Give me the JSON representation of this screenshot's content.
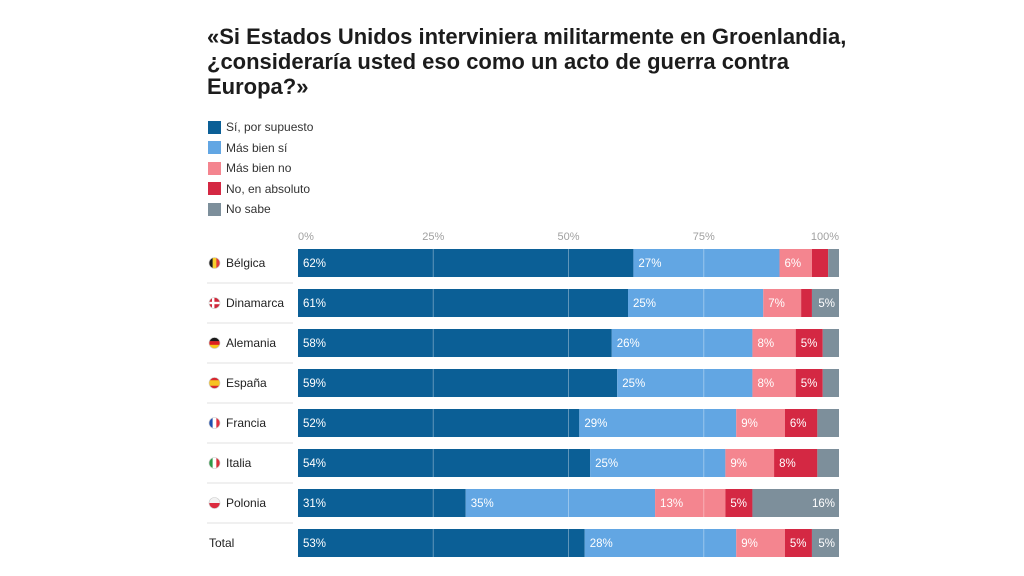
{
  "chart_data": {
    "type": "bar",
    "orientation": "horizontal",
    "stacked": true,
    "title": "«Si Estados Unidos interviniera militarmente en Groenlandia, ¿consideraría usted eso como un acto de guerra contra Europa?»",
    "xlim": [
      0,
      100
    ],
    "x_ticks": [
      "0%",
      "25%",
      "50%",
      "75%",
      "100%"
    ],
    "categories": [
      "Bélgica",
      "Dinamarca",
      "Alemania",
      "España",
      "Francia",
      "Italia",
      "Polonia",
      "Total"
    ],
    "flags": [
      "belgium-flag-icon",
      "denmark-flag-icon",
      "germany-flag-icon",
      "spain-flag-icon",
      "france-flag-icon",
      "italy-flag-icon",
      "poland-flag-icon",
      ""
    ],
    "series": [
      {
        "name": "Sí, por supuesto",
        "color": "#0b5f96",
        "values": [
          62,
          61,
          58,
          59,
          52,
          54,
          31,
          53
        ]
      },
      {
        "name": "Más bien sí",
        "color": "#62a6e3",
        "values": [
          27,
          25,
          26,
          25,
          29,
          25,
          35,
          28
        ]
      },
      {
        "name": "Más bien no",
        "color": "#f4858f",
        "values": [
          6,
          7,
          8,
          8,
          9,
          9,
          13,
          9
        ]
      },
      {
        "name": "No, en absoluto",
        "color": "#d42843",
        "values": [
          3,
          2,
          5,
          5,
          6,
          8,
          5,
          5
        ]
      },
      {
        "name": "No sabe",
        "color": "#7d8f9b",
        "values": [
          2,
          5,
          3,
          3,
          4,
          4,
          16,
          5
        ]
      }
    ],
    "label_min": 5,
    "legend_position": "top-left"
  }
}
